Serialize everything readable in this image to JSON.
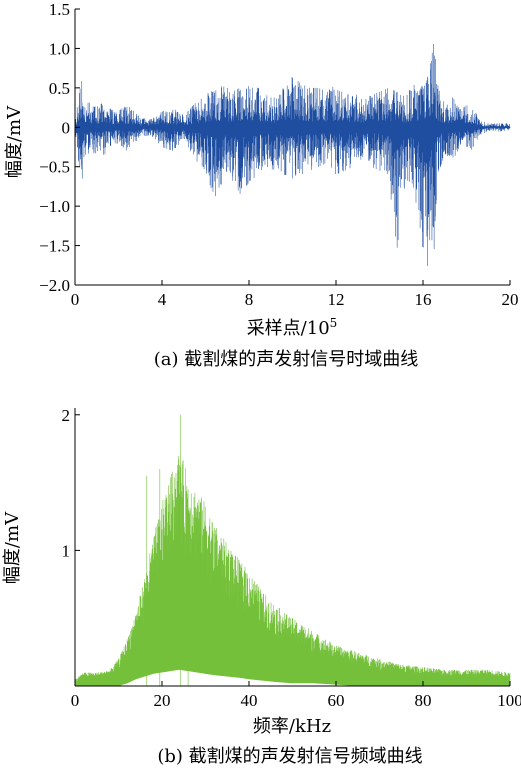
{
  "colors": {
    "time_signal": "#1f4ea1",
    "spectrum": "#74c03a",
    "axis": "#000000"
  },
  "chart_data": [
    {
      "type": "line",
      "caption": "(a) 截割煤的声发射信号时域曲线",
      "xlabel": "采样点/10",
      "xlabel_sup": "5",
      "ylabel": "幅度/mV",
      "xlim": [
        0,
        20
      ],
      "ylim": [
        -2.0,
        1.5
      ],
      "xticks": [
        "0",
        "4",
        "8",
        "12",
        "16",
        "20"
      ],
      "yticks": [
        "1.5",
        "1.0",
        "0.5",
        "0",
        "−0.5",
        "−1.0",
        "−1.5",
        "−2.0"
      ],
      "series": [
        {
          "color": "#1f4ea1",
          "envelope": {
            "x": [
              0.0,
              0.3,
              0.5,
              0.7,
              1.0,
              1.3,
              1.5,
              2.0,
              2.4,
              3.0,
              3.5,
              4.0,
              4.5,
              5.0,
              5.5,
              6.0,
              6.4,
              6.8,
              7.2,
              7.6,
              8.0,
              8.4,
              8.8,
              9.2,
              9.6,
              10.0,
              10.4,
              10.8,
              11.2,
              11.6,
              12.0,
              12.4,
              12.8,
              13.2,
              13.6,
              14.0,
              14.4,
              14.8,
              15.2,
              15.6,
              16.0,
              16.3,
              16.5,
              16.7,
              17.0,
              17.4,
              17.8,
              18.2,
              18.6,
              19.0,
              19.5,
              20.0
            ],
            "max": [
              0.1,
              0.6,
              0.35,
              0.3,
              0.25,
              0.35,
              0.25,
              0.2,
              0.3,
              0.12,
              0.1,
              0.2,
              0.25,
              0.15,
              0.3,
              0.4,
              0.5,
              0.55,
              0.45,
              0.5,
              0.55,
              0.5,
              0.45,
              0.4,
              0.5,
              0.65,
              0.55,
              0.5,
              0.5,
              0.45,
              0.55,
              0.4,
              0.45,
              0.35,
              0.4,
              0.45,
              0.5,
              0.45,
              0.4,
              0.55,
              0.6,
              0.7,
              1.1,
              0.5,
              0.3,
              0.4,
              0.25,
              0.3,
              0.1,
              0.05,
              0.05,
              0.05
            ],
            "min": [
              -0.1,
              -0.7,
              -0.4,
              -0.3,
              -0.35,
              -0.4,
              -0.25,
              -0.2,
              -0.3,
              -0.12,
              -0.1,
              -0.25,
              -0.3,
              -0.15,
              -0.4,
              -0.55,
              -0.9,
              -0.7,
              -0.65,
              -0.85,
              -0.7,
              -0.6,
              -0.5,
              -0.55,
              -0.6,
              -0.65,
              -0.6,
              -0.55,
              -0.5,
              -0.45,
              -0.6,
              -0.55,
              -0.5,
              -0.4,
              -0.5,
              -0.55,
              -0.6,
              -1.55,
              -0.7,
              -0.8,
              -1.6,
              -1.9,
              -1.6,
              -0.6,
              -0.35,
              -0.4,
              -0.2,
              -0.3,
              -0.1,
              -0.05,
              -0.05,
              -0.05
            ]
          }
        }
      ]
    },
    {
      "type": "line",
      "caption": "(b) 截割煤的声发射信号频域曲线",
      "xlabel": "频率/kHz",
      "ylabel": "幅度/mV",
      "xlim": [
        0,
        100
      ],
      "ylim": [
        0,
        2.05
      ],
      "xticks": [
        "0",
        "20",
        "40",
        "60",
        "80",
        "100"
      ],
      "yticks": [
        "2",
        "1"
      ],
      "series": [
        {
          "color": "#74c03a",
          "envelope": {
            "x": [
              0,
              2,
              5,
              8,
              10,
              12,
              14,
              16,
              18,
              20,
              22,
              24,
              26,
              28,
              30,
              32,
              35,
              38,
              40,
              43,
              46,
              50,
              55,
              60,
              65,
              70,
              75,
              80,
              85,
              90,
              95,
              100
            ],
            "max": [
              0.05,
              0.1,
              0.1,
              0.12,
              0.2,
              0.35,
              0.55,
              0.8,
              1.1,
              1.35,
              1.55,
              1.75,
              1.55,
              1.45,
              1.35,
              1.2,
              1.05,
              0.92,
              0.85,
              0.7,
              0.6,
              0.5,
              0.4,
              0.3,
              0.25,
              0.2,
              0.16,
              0.14,
              0.12,
              0.12,
              0.12,
              0.1
            ],
            "min": [
              0.0,
              0.0,
              0.0,
              0.0,
              0.0,
              0.02,
              0.05,
              0.07,
              0.09,
              0.1,
              0.11,
              0.12,
              0.11,
              0.1,
              0.09,
              0.08,
              0.07,
              0.06,
              0.05,
              0.04,
              0.03,
              0.02,
              0.02,
              0.01,
              0.0,
              0.0,
              0.0,
              0.0,
              0.0,
              0.0,
              0.0,
              0.0
            ]
          },
          "peaks": [
            {
              "x": 16.5,
              "y": 1.55
            },
            {
              "x": 19.5,
              "y": 1.6
            },
            {
              "x": 24.2,
              "y": 2.0
            },
            {
              "x": 26.0,
              "y": 1.45
            }
          ]
        }
      ]
    }
  ]
}
